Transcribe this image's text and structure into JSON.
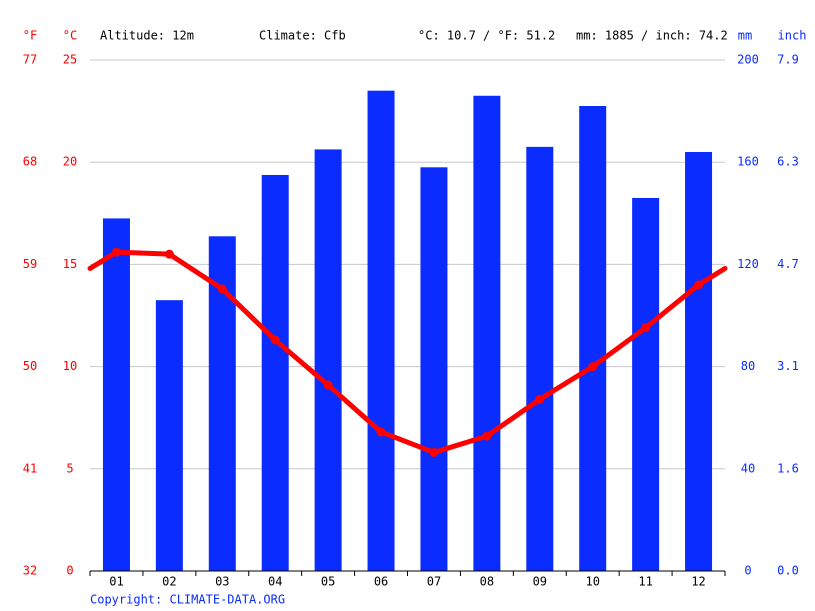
{
  "chart_data": {
    "type": "climate",
    "annotations": {
      "unit_f": "°F",
      "unit_c": "°C",
      "altitude": "Altitude: 12m",
      "climate": "Climate: Cfb",
      "temp_avg": "°C: 10.7 / °F: 51.2",
      "precip_total": "mm: 1885 / inch: 74.2",
      "unit_mm": "mm",
      "unit_inch": "inch"
    },
    "source": "Copyright: CLIMATE-DATA.ORG",
    "categories": [
      "01",
      "02",
      "03",
      "04",
      "05",
      "06",
      "07",
      "08",
      "09",
      "10",
      "11",
      "12"
    ],
    "series": [
      {
        "color": "#0a2cff",
        "axis": "y2",
        "kind": "bar",
        "values": [
          138,
          106,
          131,
          155,
          165,
          188,
          158,
          186,
          166,
          182,
          146,
          164
        ]
      },
      {
        "color": "#ff0000",
        "axis": "y",
        "kind": "line",
        "values": [
          15.6,
          15.5,
          13.8,
          11.3,
          9.1,
          6.8,
          5.8,
          6.6,
          8.4,
          10.0,
          11.9,
          14.0
        ]
      }
    ],
    "ylim": [
      0,
      25
    ],
    "yticks": [
      0,
      5,
      10,
      15,
      20,
      25
    ],
    "yticks_f": [
      {
        "value": 0,
        "label": "32"
      },
      {
        "value": 5,
        "label": "41"
      },
      {
        "value": 10,
        "label": "50"
      },
      {
        "value": 15,
        "label": "59"
      },
      {
        "value": 20,
        "label": "68"
      },
      {
        "value": 25,
        "label": "77"
      }
    ],
    "y2lim": [
      0,
      200
    ],
    "y2ticks": [
      0,
      40,
      80,
      120,
      160,
      200
    ],
    "y2ticks_inch": [
      {
        "value": 0,
        "label": "0.0"
      },
      {
        "value": 40,
        "label": "1.6"
      },
      {
        "value": 80,
        "label": "3.1"
      },
      {
        "value": 120,
        "label": "4.7"
      },
      {
        "value": 160,
        "label": "6.3"
      },
      {
        "value": 200,
        "label": "7.9"
      }
    ],
    "grid": true
  }
}
